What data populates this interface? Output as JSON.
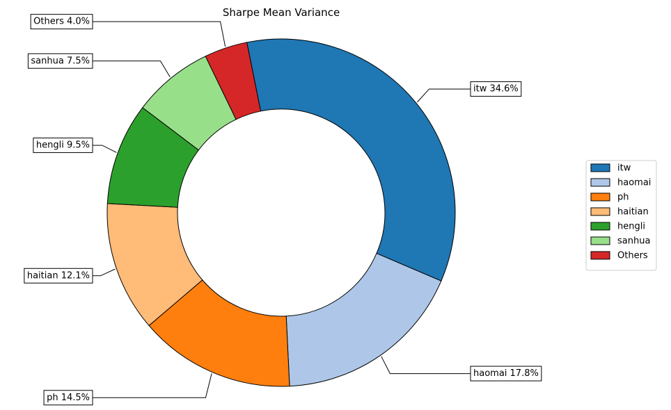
{
  "chart_data": {
    "type": "pie",
    "donut": true,
    "title": "Sharpe Mean Variance",
    "slices": [
      {
        "name": "itw",
        "value": 34.6,
        "label": "itw 34.6%",
        "color": "#1f77b4"
      },
      {
        "name": "haomai",
        "value": 17.8,
        "label": "haomai 17.8%",
        "color": "#aec7e8"
      },
      {
        "name": "ph",
        "value": 14.5,
        "label": "ph 14.5%",
        "color": "#ff7f0e"
      },
      {
        "name": "haitian",
        "value": 12.1,
        "label": "haitian 12.1%",
        "color": "#ffbb78"
      },
      {
        "name": "hengli",
        "value": 9.5,
        "label": "hengli 9.5%",
        "color": "#2ca02c"
      },
      {
        "name": "sanhua",
        "value": 7.5,
        "label": "sanhua 7.5%",
        "color": "#98df8a"
      },
      {
        "name": "Others",
        "value": 4.0,
        "label": "Others 4.0%",
        "color": "#d62728"
      }
    ],
    "legend_placement": "right",
    "legend": [
      "itw",
      "haomai",
      "ph",
      "haitian",
      "hengli",
      "sanhua",
      "Others"
    ]
  }
}
